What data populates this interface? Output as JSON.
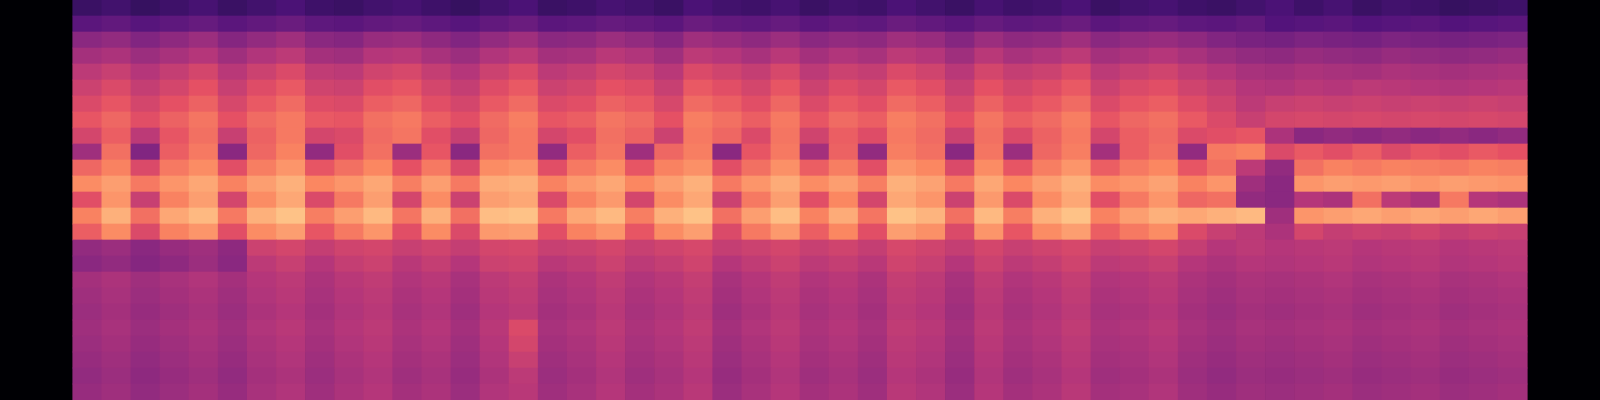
{
  "chart_data": {
    "type": "heatmap",
    "grid": false,
    "tick_labels": false,
    "zlim": [
      0,
      100
    ],
    "cells": [
      [
        20,
        22,
        19,
        21,
        23,
        20,
        22,
        24,
        21,
        20,
        22,
        23,
        21,
        19,
        22,
        24,
        20,
        21,
        23,
        22,
        20,
        24,
        22,
        21,
        23,
        20,
        22,
        21,
        24,
        22,
        20,
        23,
        21,
        22,
        24,
        20,
        22,
        23,
        21,
        20,
        22,
        24,
        21,
        23,
        20,
        22,
        21,
        19,
        20,
        21
      ],
      [
        28,
        30,
        27,
        29,
        31,
        28,
        30,
        32,
        29,
        28,
        30,
        31,
        29,
        27,
        30,
        32,
        28,
        29,
        31,
        30,
        28,
        32,
        30,
        29,
        31,
        28,
        30,
        29,
        32,
        30,
        28,
        31,
        29,
        30,
        32,
        28,
        30,
        31,
        29,
        28,
        30,
        26,
        27,
        28,
        26,
        27,
        28,
        26,
        27,
        28
      ],
      [
        40,
        42,
        38,
        41,
        44,
        39,
        42,
        45,
        40,
        39,
        43,
        44,
        41,
        38,
        42,
        45,
        40,
        41,
        44,
        42,
        39,
        45,
        43,
        41,
        44,
        40,
        42,
        41,
        45,
        43,
        39,
        44,
        41,
        42,
        45,
        40,
        42,
        43,
        41,
        38,
        36,
        35,
        37,
        36,
        35,
        37,
        36,
        35,
        36,
        37
      ],
      [
        46,
        48,
        44,
        47,
        50,
        45,
        49,
        52,
        46,
        45,
        50,
        51,
        47,
        44,
        49,
        52,
        46,
        47,
        51,
        49,
        45,
        52,
        50,
        47,
        51,
        46,
        49,
        47,
        52,
        50,
        45,
        51,
        47,
        49,
        52,
        46,
        48,
        50,
        47,
        44,
        42,
        41,
        43,
        42,
        41,
        43,
        42,
        41,
        42,
        43
      ],
      [
        52,
        55,
        50,
        54,
        58,
        51,
        56,
        60,
        53,
        52,
        57,
        59,
        54,
        50,
        56,
        60,
        52,
        54,
        58,
        56,
        51,
        60,
        57,
        54,
        59,
        52,
        56,
        54,
        60,
        57,
        51,
        58,
        54,
        56,
        60,
        52,
        55,
        57,
        53,
        50,
        47,
        46,
        48,
        47,
        46,
        48,
        47,
        46,
        47,
        48
      ],
      [
        56,
        60,
        54,
        58,
        63,
        55,
        61,
        65,
        57,
        56,
        62,
        64,
        58,
        54,
        61,
        65,
        56,
        58,
        63,
        61,
        55,
        65,
        62,
        58,
        64,
        56,
        61,
        58,
        65,
        62,
        55,
        63,
        58,
        61,
        65,
        56,
        60,
        62,
        57,
        54,
        50,
        49,
        51,
        50,
        52,
        51,
        50,
        49,
        50,
        51
      ],
      [
        60,
        64,
        58,
        63,
        67,
        59,
        65,
        69,
        61,
        60,
        66,
        68,
        62,
        58,
        65,
        69,
        60,
        62,
        67,
        65,
        59,
        69,
        66,
        62,
        68,
        60,
        65,
        62,
        69,
        66,
        59,
        67,
        62,
        65,
        69,
        60,
        64,
        66,
        61,
        57,
        52,
        55,
        56,
        55,
        56,
        55,
        56,
        55,
        56,
        55
      ],
      [
        64,
        68,
        62,
        67,
        71,
        63,
        69,
        72,
        65,
        64,
        70,
        72,
        66,
        62,
        69,
        73,
        64,
        66,
        71,
        69,
        63,
        73,
        70,
        66,
        72,
        64,
        69,
        66,
        73,
        70,
        63,
        71,
        66,
        69,
        73,
        64,
        68,
        70,
        65,
        60,
        55,
        58,
        59,
        58,
        59,
        58,
        59,
        58,
        59,
        58
      ],
      [
        58,
        66,
        52,
        64,
        70,
        55,
        67,
        72,
        58,
        60,
        69,
        71,
        62,
        55,
        68,
        72,
        58,
        62,
        70,
        67,
        56,
        72,
        68,
        60,
        71,
        57,
        66,
        61,
        72,
        69,
        56,
        70,
        60,
        67,
        72,
        58,
        66,
        69,
        60,
        62,
        64,
        48,
        40,
        42,
        40,
        42,
        40,
        42,
        40,
        42
      ],
      [
        45,
        70,
        38,
        66,
        72,
        40,
        68,
        74,
        42,
        62,
        70,
        44,
        64,
        40,
        70,
        72,
        42,
        66,
        71,
        45,
        68,
        73,
        40,
        64,
        72,
        46,
        67,
        42,
        73,
        70,
        40,
        71,
        44,
        68,
        73,
        46,
        66,
        70,
        42,
        72,
        74,
        60,
        65,
        62,
        66,
        60,
        64,
        62,
        65,
        63
      ],
      [
        68,
        74,
        60,
        72,
        76,
        62,
        73,
        78,
        64,
        70,
        75,
        63,
        72,
        60,
        76,
        78,
        62,
        72,
        76,
        64,
        74,
        77,
        62,
        70,
        77,
        66,
        73,
        62,
        78,
        75,
        60,
        76,
        64,
        73,
        78,
        66,
        72,
        75,
        64,
        70,
        52,
        42,
        70,
        74,
        72,
        74,
        73,
        72,
        74,
        73
      ],
      [
        76,
        80,
        72,
        78,
        82,
        74,
        80,
        84,
        75,
        78,
        82,
        73,
        80,
        72,
        83,
        84,
        74,
        79,
        82,
        75,
        80,
        84,
        72,
        78,
        83,
        76,
        80,
        73,
        84,
        81,
        72,
        82,
        75,
        80,
        84,
        76,
        78,
        81,
        74,
        78,
        45,
        40,
        78,
        80,
        79,
        80,
        78,
        80,
        79,
        78
      ],
      [
        62,
        78,
        55,
        74,
        80,
        58,
        76,
        82,
        60,
        72,
        80,
        58,
        76,
        56,
        80,
        82,
        60,
        74,
        79,
        58,
        76,
        82,
        56,
        72,
        80,
        62,
        75,
        58,
        82,
        78,
        56,
        79,
        60,
        76,
        82,
        62,
        72,
        78,
        68,
        70,
        42,
        40,
        50,
        48,
        70,
        52,
        48,
        72,
        50,
        48
      ],
      [
        74,
        84,
        70,
        82,
        86,
        72,
        84,
        88,
        73,
        80,
        86,
        71,
        84,
        70,
        87,
        88,
        72,
        82,
        86,
        73,
        84,
        88,
        70,
        80,
        87,
        74,
        83,
        71,
        88,
        85,
        70,
        86,
        73,
        84,
        88,
        74,
        80,
        84,
        82,
        84,
        86,
        45,
        78,
        80,
        82,
        80,
        82,
        80,
        82,
        80
      ],
      [
        66,
        76,
        60,
        74,
        78,
        62,
        76,
        80,
        64,
        72,
        78,
        62,
        76,
        60,
        79,
        80,
        62,
        74,
        78,
        64,
        76,
        80,
        60,
        72,
        79,
        66,
        75,
        62,
        80,
        77,
        60,
        78,
        64,
        76,
        80,
        66,
        72,
        76,
        60,
        55,
        52,
        48,
        58,
        54,
        56,
        55,
        57,
        54,
        56,
        55
      ],
      [
        42,
        44,
        40,
        43,
        45,
        41,
        56,
        58,
        54,
        57,
        58,
        55,
        57,
        54,
        58,
        59,
        55,
        56,
        58,
        55,
        57,
        59,
        54,
        56,
        58,
        55,
        57,
        54,
        59,
        57,
        54,
        58,
        55,
        57,
        59,
        55,
        56,
        58,
        54,
        50,
        52,
        50,
        51,
        52,
        50,
        51,
        52,
        50,
        51,
        52
      ],
      [
        40,
        42,
        39,
        41,
        44,
        40,
        52,
        55,
        50,
        54,
        56,
        51,
        54,
        50,
        56,
        57,
        51,
        53,
        56,
        52,
        54,
        57,
        50,
        53,
        56,
        52,
        54,
        51,
        57,
        55,
        50,
        56,
        52,
        54,
        57,
        52,
        53,
        55,
        50,
        48,
        50,
        49,
        50,
        51,
        49,
        50,
        51,
        49,
        50,
        51
      ],
      [
        46,
        48,
        45,
        47,
        49,
        46,
        50,
        52,
        48,
        51,
        53,
        49,
        51,
        47,
        52,
        54,
        48,
        50,
        53,
        49,
        51,
        54,
        47,
        50,
        53,
        49,
        51,
        48,
        54,
        52,
        47,
        53,
        49,
        51,
        54,
        49,
        50,
        52,
        48,
        46,
        48,
        47,
        48,
        49,
        47,
        48,
        49,
        47,
        48,
        49
      ],
      [
        45,
        47,
        44,
        46,
        48,
        45,
        49,
        51,
        47,
        50,
        52,
        48,
        50,
        46,
        51,
        53,
        47,
        49,
        52,
        48,
        50,
        53,
        46,
        49,
        52,
        48,
        50,
        47,
        53,
        51,
        46,
        52,
        48,
        50,
        53,
        48,
        49,
        51,
        47,
        45,
        47,
        46,
        47,
        48,
        46,
        47,
        48,
        46,
        47,
        48
      ],
      [
        44,
        46,
        43,
        45,
        47,
        44,
        48,
        50,
        46,
        49,
        51,
        47,
        49,
        45,
        50,
        52,
        46,
        48,
        51,
        47,
        49,
        52,
        45,
        48,
        51,
        47,
        49,
        46,
        52,
        50,
        45,
        51,
        47,
        49,
        52,
        47,
        48,
        50,
        46,
        44,
        46,
        45,
        46,
        47,
        45,
        46,
        47,
        45,
        46,
        47
      ],
      [
        45,
        47,
        44,
        46,
        48,
        45,
        49,
        51,
        47,
        50,
        52,
        48,
        50,
        46,
        51,
        60,
        47,
        49,
        52,
        48,
        50,
        53,
        46,
        49,
        52,
        48,
        50,
        47,
        53,
        51,
        46,
        52,
        48,
        50,
        53,
        48,
        49,
        51,
        47,
        45,
        47,
        46,
        47,
        48,
        46,
        47,
        48,
        46,
        47,
        48
      ],
      [
        44,
        46,
        43,
        45,
        47,
        44,
        48,
        50,
        46,
        49,
        51,
        47,
        49,
        45,
        50,
        58,
        46,
        48,
        51,
        47,
        49,
        52,
        45,
        48,
        51,
        47,
        49,
        46,
        52,
        50,
        45,
        51,
        47,
        49,
        52,
        47,
        48,
        50,
        46,
        44,
        46,
        45,
        46,
        47,
        45,
        46,
        47,
        45,
        46,
        47
      ],
      [
        43,
        45,
        42,
        44,
        46,
        43,
        47,
        49,
        45,
        48,
        50,
        46,
        48,
        44,
        49,
        55,
        45,
        47,
        50,
        46,
        48,
        51,
        44,
        47,
        50,
        46,
        48,
        45,
        51,
        49,
        44,
        50,
        46,
        48,
        51,
        46,
        47,
        49,
        45,
        43,
        45,
        44,
        45,
        46,
        44,
        45,
        46,
        44,
        45,
        46
      ],
      [
        42,
        44,
        41,
        43,
        45,
        42,
        46,
        48,
        44,
        47,
        49,
        45,
        47,
        43,
        48,
        52,
        44,
        46,
        49,
        45,
        47,
        50,
        43,
        46,
        49,
        45,
        47,
        44,
        50,
        48,
        43,
        49,
        45,
        47,
        50,
        45,
        46,
        48,
        44,
        42,
        44,
        43,
        44,
        45,
        43,
        44,
        45,
        43,
        44,
        45
      ],
      [
        43,
        45,
        42,
        44,
        46,
        43,
        47,
        49,
        45,
        48,
        50,
        46,
        48,
        44,
        49,
        51,
        45,
        47,
        50,
        46,
        48,
        51,
        44,
        47,
        50,
        46,
        48,
        45,
        51,
        49,
        44,
        50,
        46,
        48,
        51,
        46,
        47,
        49,
        45,
        43,
        45,
        44,
        45,
        46,
        44,
        45,
        46,
        44,
        45,
        46
      ]
    ]
  }
}
